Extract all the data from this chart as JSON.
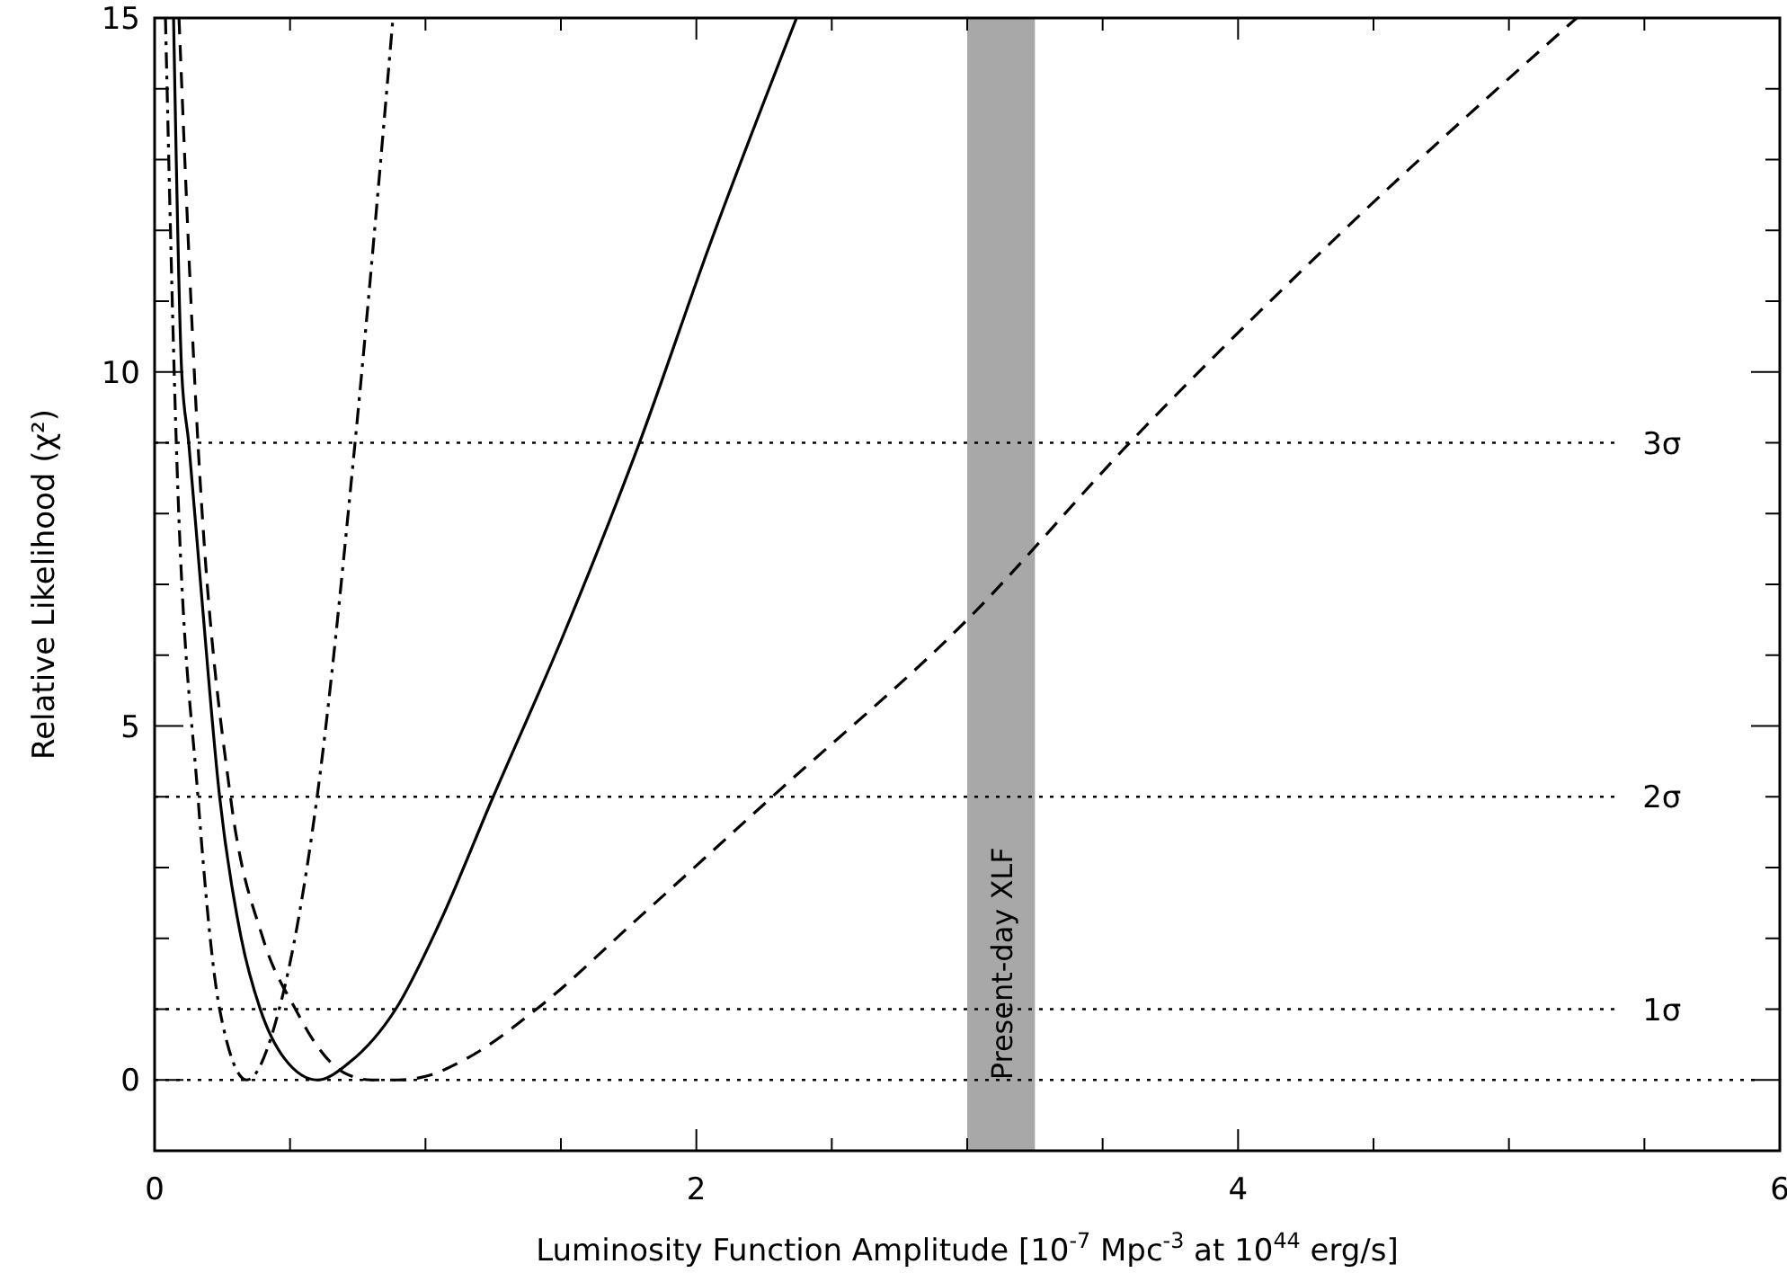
{
  "chart_data": {
    "type": "line",
    "xlabel": "Luminosity Function Amplitude [10$^{-7}$ Mpc$^{-3}$ at 10$^{44}$ erg/s]",
    "ylabel": "Relative Likelihood (χ²)",
    "xlim": [
      0,
      6
    ],
    "ylim": [
      -1,
      15
    ],
    "xticks": [
      0,
      {
        "value": 0.5,
        "label": null
      },
      {
        "value": 1,
        "label": null
      },
      {
        "value": 1.5,
        "label": null
      },
      2,
      {
        "value": 2.5,
        "label": null
      },
      {
        "value": 3,
        "label": null
      },
      {
        "value": 3.5,
        "label": null
      },
      4,
      {
        "value": 4.5,
        "label": null
      },
      {
        "value": 5,
        "label": null
      },
      {
        "value": 5.5,
        "label": null
      },
      6
    ],
    "yticks": [
      0,
      {
        "value": 1,
        "label": null
      },
      {
        "value": 2,
        "label": null
      },
      {
        "value": 3,
        "label": null
      },
      {
        "value": 4,
        "label": null
      },
      5,
      {
        "value": 6,
        "label": null
      },
      {
        "value": 7,
        "label": null
      },
      {
        "value": 8,
        "label": null
      },
      {
        "value": 9,
        "label": null
      },
      10,
      {
        "value": 11,
        "label": null
      },
      {
        "value": 12,
        "label": null
      },
      {
        "value": 13,
        "label": null
      },
      {
        "value": 14,
        "label": null
      },
      15
    ],
    "grid": false,
    "marker": "none",
    "series": [
      {
        "color": "#000000",
        "line_style": "solid",
        "x": [
          0.07,
          0.1,
          0.126,
          0.17,
          0.24,
          0.32,
          0.39,
          0.48,
          0.6,
          0.72,
          0.89,
          1.05,
          1.25,
          1.5,
          1.79,
          2.05,
          2.37
        ],
        "values": [
          15,
          10,
          9,
          7,
          4,
          2,
          1,
          0.3,
          0,
          0.25,
          1,
          2.2,
          4,
          6.2,
          9,
          11.8,
          15
        ]
      },
      {
        "color": "#000000",
        "line_style": "dashed",
        "x": [
          0.09,
          0.16,
          0.28,
          0.4,
          0.52,
          0.6,
          0.7,
          0.8,
          0.9,
          1.0,
          1.16,
          1.41,
          1.79,
          2.28,
          3.0,
          3.6,
          4.39,
          5.25
        ],
        "values": [
          15,
          9,
          4,
          2,
          1,
          0.48,
          0.1,
          0,
          0,
          0.05,
          0.32,
          1,
          2.3,
          4,
          6.5,
          9,
          12,
          15
        ]
      },
      {
        "color": "#000000",
        "line_style": "dashdot",
        "x": [
          0.04,
          0.08,
          0.16,
          0.24,
          0.34,
          0.46,
          0.6,
          0.74,
          0.88
        ],
        "values": [
          15,
          9,
          4,
          1,
          0,
          1,
          4,
          9,
          15
        ]
      }
    ],
    "ref_lines": [
      {
        "axis": "y",
        "value": 0,
        "label": null,
        "line_style": "dotted",
        "color": "#000000"
      },
      {
        "axis": "y",
        "value": 1,
        "label": "1σ",
        "line_style": "dotted",
        "color": "#000000"
      },
      {
        "axis": "y",
        "value": 4,
        "label": "2σ",
        "line_style": "dotted",
        "color": "#000000"
      },
      {
        "axis": "y",
        "value": 9,
        "label": "3σ",
        "line_style": "dotted",
        "color": "#000000"
      }
    ],
    "bands": [
      {
        "axis": "x",
        "from": 3,
        "to": 3.25,
        "label": "Present-day XLF",
        "color": "#a8a8a8"
      }
    ]
  }
}
